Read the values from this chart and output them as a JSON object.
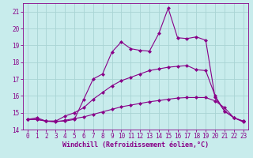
{
  "x": [
    0,
    1,
    2,
    3,
    4,
    5,
    6,
    7,
    8,
    9,
    10,
    11,
    12,
    13,
    14,
    15,
    16,
    17,
    18,
    19,
    20,
    21,
    22,
    23
  ],
  "line1": [
    14.6,
    14.7,
    14.5,
    14.5,
    14.5,
    14.6,
    15.8,
    17.0,
    17.3,
    18.6,
    19.2,
    18.8,
    18.7,
    18.65,
    19.7,
    21.2,
    19.45,
    19.4,
    19.5,
    19.3,
    15.9,
    15.1,
    14.7,
    14.5
  ],
  "line2": [
    14.6,
    14.6,
    14.5,
    14.5,
    14.8,
    15.0,
    15.3,
    15.8,
    16.2,
    16.6,
    16.9,
    17.1,
    17.3,
    17.5,
    17.6,
    17.7,
    17.75,
    17.8,
    17.55,
    17.5,
    16.0,
    15.1,
    14.7,
    14.5
  ],
  "line3": [
    14.6,
    14.6,
    14.5,
    14.45,
    14.55,
    14.65,
    14.75,
    14.9,
    15.05,
    15.2,
    15.35,
    15.45,
    15.55,
    15.65,
    15.72,
    15.8,
    15.87,
    15.9,
    15.9,
    15.9,
    15.7,
    15.3,
    14.7,
    14.45
  ],
  "line_color": "#880088",
  "bg_color": "#c8ecec",
  "grid_color": "#a8d4d4",
  "xlabel": "Windchill (Refroidissement éolien,°C)",
  "ylim": [
    14.0,
    21.5
  ],
  "xlim": [
    -0.5,
    23.5
  ],
  "yticks": [
    14,
    15,
    16,
    17,
    18,
    19,
    20,
    21
  ],
  "xticks": [
    0,
    1,
    2,
    3,
    4,
    5,
    6,
    7,
    8,
    9,
    10,
    11,
    12,
    13,
    14,
    15,
    16,
    17,
    18,
    19,
    20,
    21,
    22,
    23
  ],
  "markersize": 2.5,
  "linewidth": 0.8,
  "font_color": "#880088",
  "tick_fontsize": 5.5,
  "xlabel_fontsize": 6.0
}
